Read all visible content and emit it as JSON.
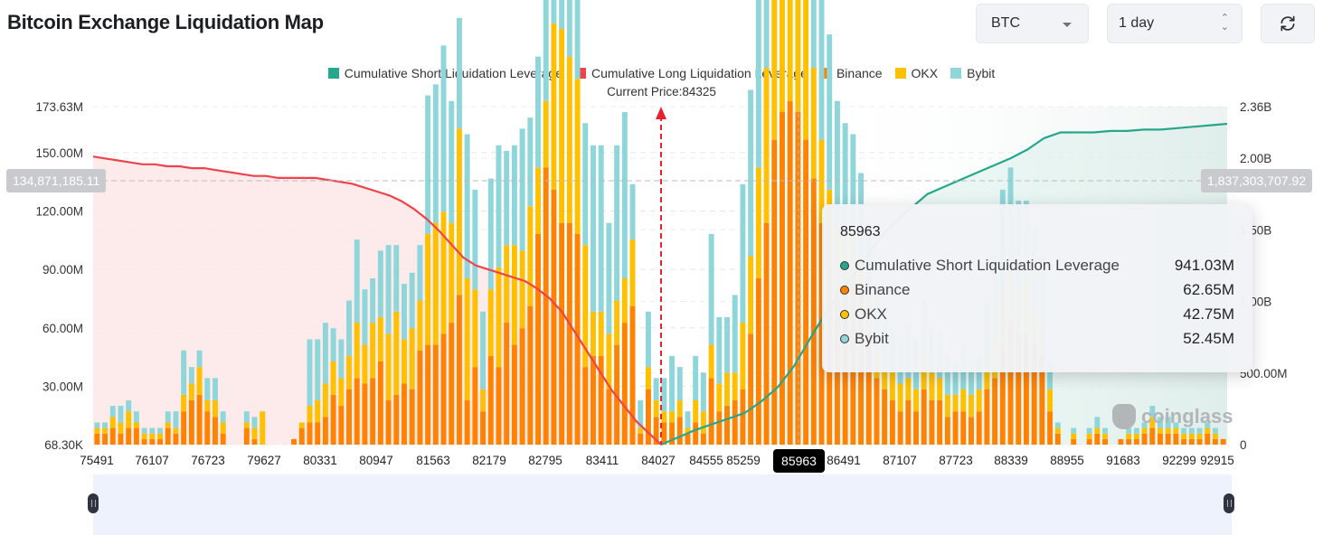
{
  "header": {
    "title": "Bitcoin Exchange Liquidation Map",
    "symbol_select": "BTC",
    "range_select": "1 day",
    "refresh_icon": "refresh-icon"
  },
  "colors": {
    "short_cum": "#26a68a",
    "long_cum": "#f0424b",
    "binance": "#ff8200",
    "okx": "#ffc000",
    "bybit": "#8ed6da"
  },
  "chart_data": {
    "type": "bar",
    "title": "Bitcoin Exchange Liquidation Map",
    "current_price_label": "Current Price:84325",
    "current_price": 84325,
    "legend": [
      {
        "name": "Cumulative Short Liquidation Leverage",
        "color": "#26a68a"
      },
      {
        "name": "Cumulative Long Liquidation Leverage",
        "color": "#f0424b"
      },
      {
        "name": "Binance",
        "color": "#ff8200"
      },
      {
        "name": "OKX",
        "color": "#ffc000"
      },
      {
        "name": "Bybit",
        "color": "#8ed6da"
      }
    ],
    "y_left": {
      "ticks": [
        "173.63M",
        "150.00M",
        "120.00M",
        "90.00M",
        "60.00M",
        "30.00M",
        "68.30K"
      ],
      "range": [
        0,
        173630000
      ]
    },
    "y_right": {
      "ticks": [
        "2.36B",
        "2.00B",
        "1.50B",
        "1.00B",
        "500.00M",
        "0"
      ],
      "range": [
        0,
        2360000000
      ]
    },
    "x_ticks": [
      "75491",
      "76107",
      "76723",
      "79627",
      "80331",
      "80947",
      "81563",
      "82179",
      "82795",
      "83411",
      "84027",
      "84555",
      "85259",
      "85963",
      "86491",
      "87107",
      "87723",
      "88339",
      "88955",
      "91683",
      "92299",
      "92915"
    ],
    "crosshair": {
      "x_label": "85963",
      "left_value": "134,871,185.11",
      "right_value": "1,837,303,707.92"
    },
    "tooltip": {
      "title": "85963",
      "rows": [
        {
          "name": "Cumulative Short Liquidation Leverage",
          "value": "941.03M",
          "color": "#26a68a"
        },
        {
          "name": "Binance",
          "value": "62.65M",
          "color": "#ff8200"
        },
        {
          "name": "OKX",
          "value": "42.75M",
          "color": "#ffc000"
        },
        {
          "name": "Bybit",
          "value": "52.45M",
          "color": "#8ed6da"
        }
      ]
    },
    "bars": {
      "binance": [
        2,
        2,
        3,
        2,
        3,
        3,
        1,
        1,
        1,
        3,
        2,
        6,
        8,
        9,
        6,
        5,
        2,
        0,
        0,
        3,
        1,
        0,
        0,
        0,
        0,
        1,
        3,
        4,
        4,
        5,
        9,
        7,
        10,
        12,
        11,
        12,
        15,
        8,
        9,
        11,
        10,
        17,
        18,
        18,
        20,
        22,
        27,
        8,
        14,
        6,
        16,
        14,
        22,
        18,
        21,
        25,
        38,
        50,
        46,
        40,
        40,
        38,
        14,
        16,
        16,
        10,
        18,
        22,
        25,
        2,
        10,
        5,
        4,
        4,
        5,
        2,
        4,
        2,
        12,
        6,
        7,
        8,
        10,
        20,
        30,
        40,
        55,
        60,
        62,
        60,
        55,
        48,
        40,
        32,
        28,
        28,
        30,
        28,
        20,
        12,
        10,
        8,
        6,
        8,
        6,
        10,
        8,
        8,
        5,
        6,
        6,
        5,
        6,
        10,
        12,
        18,
        22,
        20,
        20,
        18,
        16,
        6,
        2,
        0,
        1,
        0,
        1,
        2,
        1,
        0,
        1,
        1,
        1,
        2,
        3,
        2,
        2,
        2,
        1,
        1,
        1,
        2,
        1,
        1
      ],
      "okx": [
        1,
        1,
        2,
        2,
        3,
        1,
        1,
        1,
        1,
        1,
        1,
        3,
        3,
        5,
        2,
        3,
        2,
        0,
        0,
        1,
        2,
        6,
        0,
        0,
        0,
        0,
        1,
        3,
        4,
        6,
        6,
        5,
        6,
        10,
        7,
        10,
        8,
        12,
        15,
        8,
        11,
        9,
        20,
        22,
        22,
        18,
        30,
        22,
        14,
        4,
        12,
        18,
        14,
        18,
        14,
        18,
        12,
        12,
        30,
        35,
        30,
        28,
        22,
        8,
        8,
        10,
        8,
        8,
        12,
        1,
        4,
        3,
        2,
        2,
        3,
        1,
        4,
        4,
        6,
        5,
        6,
        5,
        12,
        14,
        20,
        28,
        40,
        42,
        42,
        38,
        34,
        20,
        15,
        14,
        12,
        10,
        8,
        6,
        6,
        5,
        4,
        5,
        5,
        4,
        4,
        6,
        5,
        4,
        4,
        3,
        4,
        4,
        4,
        6,
        8,
        10,
        10,
        8,
        10,
        6,
        6,
        4,
        1,
        0,
        1,
        0,
        1,
        1,
        1,
        0,
        0,
        1,
        1,
        1,
        2,
        1,
        1,
        1,
        1,
        1,
        1,
        1,
        1,
        0
      ],
      "bybit": [
        1,
        1,
        2,
        3,
        2,
        2,
        1,
        1,
        1,
        2,
        3,
        8,
        3,
        3,
        4,
        4,
        2,
        0,
        0,
        2,
        2,
        0,
        0,
        0,
        0,
        0,
        0,
        12,
        11,
        11,
        6,
        7,
        10,
        15,
        10,
        8,
        12,
        16,
        12,
        10,
        10,
        10,
        25,
        25,
        30,
        22,
        20,
        26,
        18,
        14,
        20,
        22,
        17,
        18,
        22,
        16,
        20,
        50,
        62,
        60,
        50,
        48,
        22,
        30,
        30,
        20,
        28,
        30,
        10,
        5,
        10,
        4,
        6,
        10,
        6,
        3,
        8,
        7,
        20,
        12,
        10,
        14,
        25,
        30,
        40,
        54,
        60,
        62,
        50,
        52,
        45,
        35,
        30,
        28,
        22,
        20,
        18,
        15,
        14,
        12,
        10,
        8,
        8,
        10,
        9,
        10,
        8,
        8,
        7,
        6,
        8,
        6,
        6,
        10,
        14,
        18,
        18,
        16,
        14,
        15,
        12,
        5,
        1,
        0,
        1,
        0,
        1,
        2,
        1,
        0,
        0,
        1,
        1,
        1,
        2,
        2,
        2,
        1,
        1,
        1,
        1,
        1,
        1,
        0
      ]
    },
    "long_cum_curve_millions": [
      148,
      147,
      146,
      145,
      144,
      144,
      143,
      143,
      142,
      142,
      141,
      140,
      139,
      138,
      138,
      137,
      137,
      137,
      137,
      136,
      135,
      134,
      132,
      130,
      128,
      125,
      121,
      116,
      110,
      103,
      96,
      92,
      90,
      88,
      86,
      84,
      80,
      75,
      68,
      58,
      48,
      38,
      28,
      20,
      12,
      6,
      0
    ],
    "short_cum_curve_billions": [
      0,
      0.05,
      0.1,
      0.14,
      0.18,
      0.22,
      0.3,
      0.4,
      0.55,
      0.75,
      0.94,
      1.1,
      1.25,
      1.42,
      1.55,
      1.65,
      1.75,
      1.8,
      1.85,
      1.9,
      1.95,
      2.0,
      2.06,
      2.14,
      2.18,
      2.18,
      2.18,
      2.19,
      2.19,
      2.2,
      2.2,
      2.21,
      2.22,
      2.23,
      2.24
    ],
    "ylabel_left": "",
    "ylabel_right": "",
    "xlabel": ""
  },
  "watermark": "coinglass"
}
